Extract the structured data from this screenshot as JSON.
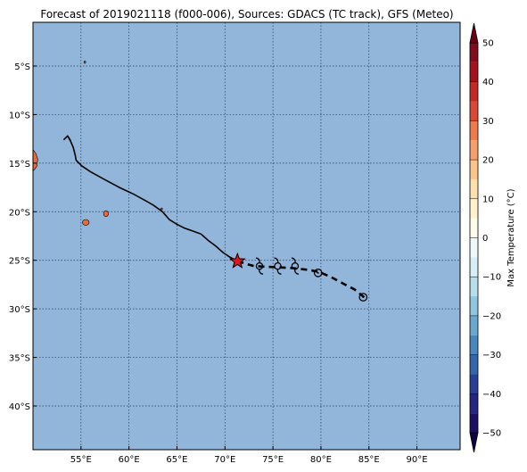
{
  "title": "Forecast of 2019021118 (f000-006), Sources: GDACS (TC track), GFS (Meteo)",
  "map": {
    "lon_range": [
      50,
      94.5
    ],
    "lat_range": [
      -44.5,
      -0.5
    ],
    "ocean_color": "#91b6da",
    "land_color": "#e8683f",
    "grid": true,
    "x_ticks": [
      {
        "value": 55,
        "label": "55°E"
      },
      {
        "value": 60,
        "label": "60°E"
      },
      {
        "value": 65,
        "label": "65°E"
      },
      {
        "value": 70,
        "label": "70°E"
      },
      {
        "value": 75,
        "label": "75°E"
      },
      {
        "value": 80,
        "label": "80°E"
      },
      {
        "value": 85,
        "label": "85°E"
      },
      {
        "value": 90,
        "label": "90°E"
      }
    ],
    "y_ticks": [
      {
        "value": -5,
        "label": "5°S"
      },
      {
        "value": -10,
        "label": "10°S"
      },
      {
        "value": -15,
        "label": "15°S"
      },
      {
        "value": -20,
        "label": "20°S"
      },
      {
        "value": -25,
        "label": "25°S"
      },
      {
        "value": -30,
        "label": "30°S"
      },
      {
        "value": -35,
        "label": "35°S"
      },
      {
        "value": -40,
        "label": "40°S"
      }
    ],
    "past_track": [
      [
        53.7,
        -12.3
      ],
      [
        53.9,
        -12.7
      ],
      [
        54.2,
        -13.4
      ],
      [
        54.4,
        -14.2
      ],
      [
        54.5,
        -14.7
      ],
      [
        55.1,
        -15.3
      ],
      [
        56.0,
        -15.9
      ],
      [
        57.5,
        -16.7
      ],
      [
        59.0,
        -17.5
      ],
      [
        60.5,
        -18.2
      ],
      [
        61.6,
        -18.8
      ],
      [
        62.5,
        -19.3
      ],
      [
        63.5,
        -20.0
      ],
      [
        64.2,
        -20.8
      ],
      [
        65.0,
        -21.3
      ],
      [
        65.8,
        -21.7
      ],
      [
        66.7,
        -22.0
      ],
      [
        67.5,
        -22.3
      ],
      [
        68.3,
        -23.0
      ],
      [
        69.0,
        -23.5
      ],
      [
        69.8,
        -24.2
      ],
      [
        70.4,
        -24.6
      ],
      [
        71.3,
        -25.1
      ]
    ],
    "hook": [
      [
        53.2,
        -12.6
      ],
      [
        53.6,
        -12.2
      ],
      [
        53.9,
        -12.7
      ]
    ],
    "current_position": [
      71.3,
      -25.1
    ],
    "forecast_track": [
      [
        71.3,
        -25.1
      ],
      [
        73.0,
        -25.6
      ],
      [
        75.0,
        -25.7
      ],
      [
        77.0,
        -25.8
      ],
      [
        78.8,
        -26.0
      ],
      [
        79.8,
        -26.2
      ],
      [
        81.0,
        -26.7
      ],
      [
        82.5,
        -27.5
      ],
      [
        83.5,
        -28.0
      ],
      [
        84.5,
        -28.8
      ]
    ],
    "cyclone_symbols": [
      [
        73.6,
        -25.6
      ],
      [
        75.5,
        -25.6
      ],
      [
        77.3,
        -25.6
      ]
    ],
    "low_symbols": [
      [
        79.7,
        -26.3
      ],
      [
        84.4,
        -28.8
      ]
    ],
    "islands": [
      {
        "lon": 55.5,
        "lat": -21.1,
        "rx": 0.35,
        "ry": 0.3
      },
      {
        "lon": 57.6,
        "lat": -20.2,
        "rx": 0.25,
        "ry": 0.3
      },
      {
        "lon": 55.4,
        "lat": -4.6,
        "rx": 0.08,
        "ry": 0.12
      },
      {
        "lon": 63.4,
        "lat": -19.7,
        "rx": 0.08,
        "ry": 0.05
      }
    ]
  },
  "colorbar": {
    "label": "Max Temperature (°C)",
    "min": -50,
    "max": 50,
    "ticks": [
      {
        "value": 50,
        "label": "50"
      },
      {
        "value": 40,
        "label": "40"
      },
      {
        "value": 30,
        "label": "30"
      },
      {
        "value": 20,
        "label": "20"
      },
      {
        "value": 10,
        "label": "10"
      },
      {
        "value": 0,
        "label": "0"
      },
      {
        "value": -10,
        "label": "−10"
      },
      {
        "value": -20,
        "label": "−20"
      },
      {
        "value": -30,
        "label": "−30"
      },
      {
        "value": -40,
        "label": "−40"
      },
      {
        "value": -50,
        "label": "−50"
      }
    ],
    "bands": [
      {
        "from": 45,
        "to": 50,
        "color": "#7f0d1f"
      },
      {
        "from": 40,
        "to": 45,
        "color": "#a3121f"
      },
      {
        "from": 35,
        "to": 40,
        "color": "#c32a24"
      },
      {
        "from": 30,
        "to": 35,
        "color": "#d94a35"
      },
      {
        "from": 25,
        "to": 30,
        "color": "#ec7b4e"
      },
      {
        "from": 20,
        "to": 25,
        "color": "#f59f6b"
      },
      {
        "from": 15,
        "to": 20,
        "color": "#fbc589"
      },
      {
        "from": 10,
        "to": 15,
        "color": "#fde1ac"
      },
      {
        "from": 5,
        "to": 10,
        "color": "#fff2cd"
      },
      {
        "from": 0,
        "to": 5,
        "color": "#fffbeb"
      },
      {
        "from": -5,
        "to": 0,
        "color": "#eef8fb"
      },
      {
        "from": -10,
        "to": -5,
        "color": "#d7eef4"
      },
      {
        "from": -15,
        "to": -10,
        "color": "#b7dfeb"
      },
      {
        "from": -20,
        "to": -15,
        "color": "#91c6df"
      },
      {
        "from": -25,
        "to": -20,
        "color": "#6ba8cf"
      },
      {
        "from": -30,
        "to": -25,
        "color": "#4a87bd"
      },
      {
        "from": -35,
        "to": -30,
        "color": "#3566a9"
      },
      {
        "from": -40,
        "to": -35,
        "color": "#293f95"
      },
      {
        "from": -45,
        "to": -40,
        "color": "#26257f"
      },
      {
        "from": -50,
        "to": -45,
        "color": "#1c0f63"
      }
    ],
    "over_color": "#6a0018",
    "under_color": "#0d0640"
  }
}
